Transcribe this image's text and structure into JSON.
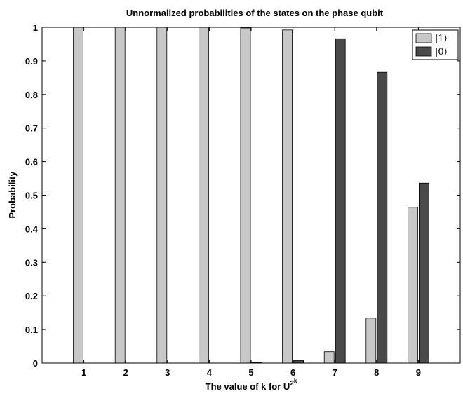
{
  "chart_data": {
    "type": "bar",
    "title": "Unnormalized probabilities of the states on the phase qubit",
    "xlabel": "The value of k for U",
    "xlabel_superscript": "2",
    "xlabel_super_superscript": "k",
    "ylabel": "Probability",
    "categories": [
      "1",
      "2",
      "3",
      "4",
      "5",
      "6",
      "7",
      "8",
      "9"
    ],
    "xlim": [
      0,
      10
    ],
    "ylim": [
      0,
      1
    ],
    "yticks": [
      "0",
      "0.1",
      "0.2",
      "0.3",
      "0.4",
      "0.5",
      "0.6",
      "0.7",
      "0.8",
      "0.9",
      "1"
    ],
    "legend_position": "top-right",
    "series": [
      {
        "name": "|1⟩",
        "color": "#c8c8c8",
        "values": [
          1.0,
          1.0,
          1.0,
          1.0,
          0.998,
          0.992,
          0.034,
          0.134,
          0.464
        ]
      },
      {
        "name": "|0⟩",
        "color": "#4a4a4a",
        "values": [
          0.0,
          0.0,
          0.0,
          0.0,
          0.002,
          0.008,
          0.966,
          0.866,
          0.536
        ]
      }
    ]
  }
}
